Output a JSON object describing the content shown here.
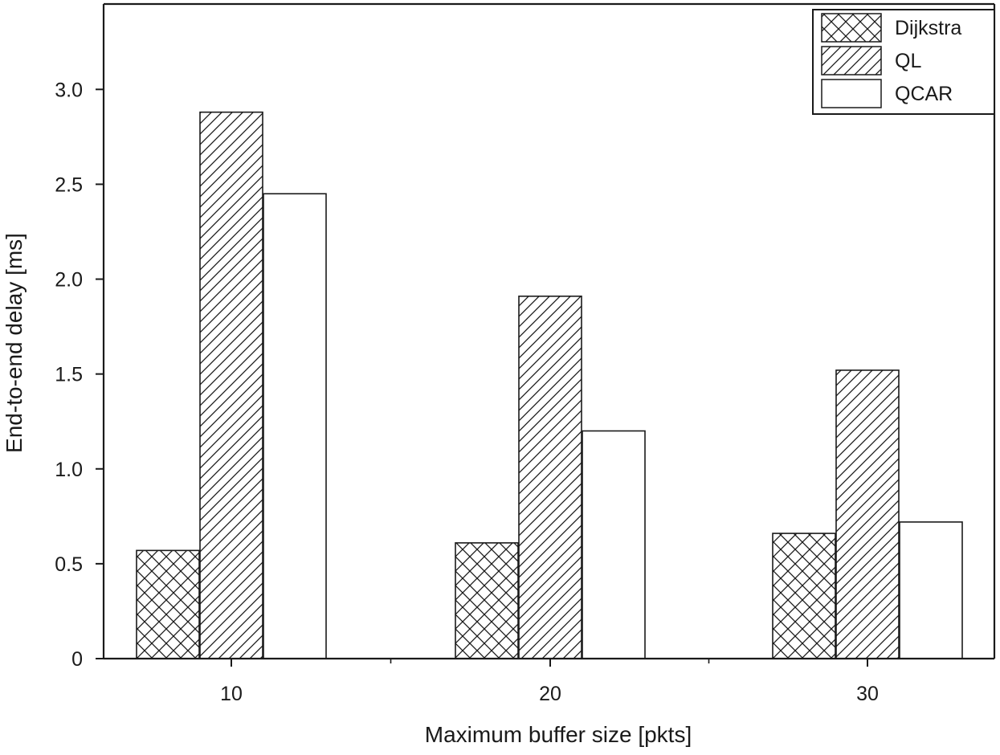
{
  "chart_data": {
    "type": "bar",
    "title": "",
    "xlabel": "Maximum buffer size [pkts]",
    "ylabel": "End-to-end delay [ms]",
    "categories": [
      "10",
      "20",
      "30"
    ],
    "ylim": [
      0,
      3.45
    ],
    "yticks": [
      0,
      0.5,
      1.0,
      1.5,
      2.0,
      2.5,
      3.0
    ],
    "ytick_labels": [
      "0",
      "0.5",
      "1.0",
      "1.5",
      "2.0",
      "2.5",
      "3.0"
    ],
    "grid": false,
    "legend_position": "top-right",
    "series": [
      {
        "name": "Dijkstra",
        "pattern": "crosshatch",
        "values": [
          0.57,
          0.61,
          0.66
        ]
      },
      {
        "name": "QL",
        "pattern": "diagonal",
        "values": [
          2.88,
          1.91,
          1.52
        ]
      },
      {
        "name": "QCAR",
        "pattern": "none",
        "values": [
          2.45,
          1.2,
          0.72
        ]
      }
    ]
  },
  "colors": {
    "bar_stroke": "#1a1a1a",
    "bar_fill": "#ffffff",
    "axis": "#1a1a1a"
  }
}
